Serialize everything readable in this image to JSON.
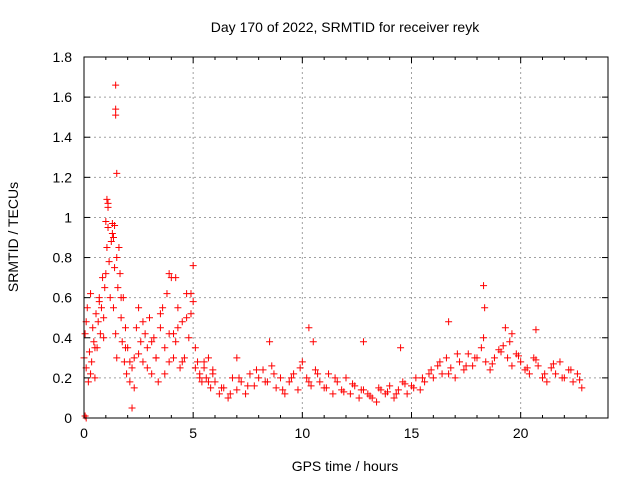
{
  "chart_data": {
    "type": "scatter",
    "title": "Day 170 of 2022, SRMTID for receiver reyk",
    "xlabel": "GPS time / hours",
    "ylabel": "SRMTID / TECUs",
    "xlim": [
      0,
      24
    ],
    "ylim": [
      0,
      1.8
    ],
    "xticks": [
      0,
      5,
      10,
      15,
      20
    ],
    "xtick_labels": [
      "0",
      "5",
      "10",
      "15",
      "20"
    ],
    "yticks": [
      0,
      0.2,
      0.4,
      0.6,
      0.8,
      1.0,
      1.2,
      1.4,
      1.6,
      1.8
    ],
    "ytick_labels": [
      "0",
      "0.2",
      "0.4",
      "0.6",
      "0.8",
      "1",
      "1.2",
      "1.4",
      "1.6",
      "1.8"
    ],
    "grid": true,
    "marker": "+",
    "color": "#ff0000",
    "series": [
      {
        "name": "SRMTID",
        "x": [
          0.0,
          0.05,
          0.1,
          0.15,
          0.2,
          0.25,
          0.3,
          0.35,
          0.4,
          0.45,
          0.5,
          0.55,
          0.6,
          0.65,
          0.7,
          0.75,
          0.8,
          0.85,
          0.9,
          0.95,
          1.0,
          1.05,
          1.1,
          1.15,
          1.2,
          1.25,
          1.3,
          1.35,
          1.4,
          1.45,
          1.5,
          1.55,
          1.6,
          1.65,
          1.7,
          1.75,
          1.8,
          1.85,
          1.9,
          1.95,
          2.0,
          2.1,
          2.2,
          2.3,
          2.4,
          2.5,
          2.6,
          2.7,
          2.8,
          2.9,
          3.0,
          3.1,
          3.2,
          3.3,
          3.4,
          3.5,
          3.6,
          3.7,
          3.8,
          3.9,
          4.0,
          4.1,
          4.2,
          4.3,
          4.4,
          4.5,
          4.6,
          4.7,
          4.8,
          4.9,
          5.0,
          5.1,
          5.2,
          5.3,
          5.4,
          5.5,
          5.6,
          5.7,
          5.8,
          5.9,
          6.0,
          6.2,
          6.4,
          6.6,
          6.8,
          7.0,
          7.2,
          7.4,
          7.6,
          7.8,
          8.0,
          8.2,
          8.4,
          8.6,
          8.8,
          9.0,
          9.2,
          9.4,
          9.6,
          9.8,
          10.0,
          10.2,
          10.4,
          10.6,
          10.8,
          11.0,
          11.2,
          11.4,
          11.6,
          11.8,
          12.0,
          12.2,
          12.4,
          12.6,
          12.8,
          13.0,
          13.2,
          13.4,
          13.6,
          13.8,
          14.0,
          14.2,
          14.4,
          14.6,
          14.8,
          15.0,
          15.2,
          15.4,
          15.6,
          15.8,
          16.0,
          16.2,
          16.4,
          16.6,
          16.8,
          17.0,
          17.2,
          17.4,
          17.6,
          17.8,
          18.0,
          18.2,
          18.4,
          18.6,
          18.8,
          19.0,
          19.2,
          19.4,
          19.6,
          19.8,
          20.0,
          20.2,
          20.4,
          20.6,
          20.8,
          21.0,
          21.2,
          21.4,
          21.6,
          21.8,
          22.0,
          22.2,
          22.4,
          22.6,
          22.8,
          0.1,
          0.3,
          0.5,
          0.7,
          0.9,
          1.1,
          1.3,
          1.5,
          1.7,
          1.9,
          2.1,
          2.3,
          2.5,
          2.7,
          2.9,
          3.1,
          3.3,
          3.5,
          3.7,
          3.9,
          4.1,
          4.3,
          4.5,
          4.7,
          4.9,
          5.1,
          5.3,
          5.5,
          5.7,
          5.9,
          6.3,
          6.7,
          7.1,
          7.5,
          7.9,
          8.3,
          8.7,
          9.1,
          9.5,
          9.9,
          10.3,
          10.7,
          11.1,
          11.5,
          11.9,
          12.3,
          12.7,
          13.1,
          13.5,
          13.9,
          14.3,
          14.7,
          15.1,
          15.5,
          15.9,
          16.3,
          16.7,
          17.1,
          17.5,
          17.9,
          18.3,
          18.7,
          19.1,
          19.5,
          19.9,
          20.3,
          20.7,
          21.1,
          21.5,
          21.9,
          22.3,
          22.7,
          1.45,
          1.45,
          1.45,
          1.5,
          1.05,
          1.1,
          1.0,
          1.4,
          1.35,
          0.05,
          0.1,
          2.2,
          3.9,
          4.2,
          5.0,
          18.3,
          18.35,
          16.7,
          19.3,
          19.6,
          20.7,
          10.3,
          10.5,
          8.5,
          12.8,
          7.0,
          14.5
        ],
        "y": [
          0.3,
          0.42,
          0.25,
          0.55,
          0.18,
          0.33,
          0.62,
          0.28,
          0.45,
          0.38,
          0.2,
          0.52,
          0.35,
          0.48,
          0.6,
          0.42,
          0.55,
          0.7,
          0.5,
          0.65,
          0.72,
          0.85,
          0.95,
          0.78,
          0.6,
          0.88,
          0.97,
          0.55,
          0.75,
          0.42,
          0.3,
          0.65,
          0.85,
          0.72,
          0.5,
          0.38,
          0.6,
          0.28,
          0.45,
          0.22,
          0.35,
          0.18,
          0.25,
          0.3,
          0.45,
          0.55,
          0.38,
          0.28,
          0.42,
          0.35,
          0.5,
          0.22,
          0.4,
          0.3,
          0.18,
          0.45,
          0.55,
          0.35,
          0.62,
          0.28,
          0.7,
          0.42,
          0.38,
          0.55,
          0.25,
          0.48,
          0.3,
          0.62,
          0.4,
          0.52,
          0.58,
          0.35,
          0.28,
          0.22,
          0.18,
          0.25,
          0.2,
          0.3,
          0.15,
          0.22,
          0.18,
          0.12,
          0.15,
          0.1,
          0.2,
          0.14,
          0.18,
          0.12,
          0.22,
          0.16,
          0.2,
          0.24,
          0.18,
          0.26,
          0.15,
          0.2,
          0.12,
          0.18,
          0.22,
          0.14,
          0.28,
          0.2,
          0.16,
          0.24,
          0.18,
          0.15,
          0.22,
          0.12,
          0.18,
          0.14,
          0.2,
          0.12,
          0.16,
          0.1,
          0.14,
          0.12,
          0.1,
          0.08,
          0.14,
          0.12,
          0.16,
          0.1,
          0.14,
          0.18,
          0.12,
          0.16,
          0.2,
          0.14,
          0.18,
          0.22,
          0.2,
          0.26,
          0.22,
          0.3,
          0.25,
          0.2,
          0.28,
          0.24,
          0.32,
          0.26,
          0.3,
          0.35,
          0.28,
          0.24,
          0.3,
          0.34,
          0.36,
          0.3,
          0.26,
          0.32,
          0.28,
          0.24,
          0.22,
          0.3,
          0.26,
          0.2,
          0.18,
          0.25,
          0.22,
          0.28,
          0.2,
          0.24,
          0.18,
          0.22,
          0.15,
          0.48,
          0.22,
          0.35,
          0.58,
          0.4,
          1.05,
          0.92,
          0.8,
          0.6,
          0.35,
          0.28,
          0.15,
          0.32,
          0.48,
          0.25,
          0.38,
          0.3,
          0.52,
          0.22,
          0.42,
          0.3,
          0.45,
          0.28,
          0.5,
          0.62,
          0.25,
          0.2,
          0.28,
          0.18,
          0.24,
          0.15,
          0.12,
          0.2,
          0.16,
          0.24,
          0.18,
          0.22,
          0.14,
          0.2,
          0.25,
          0.18,
          0.22,
          0.15,
          0.2,
          0.13,
          0.17,
          0.14,
          0.11,
          0.15,
          0.13,
          0.12,
          0.17,
          0.15,
          0.2,
          0.24,
          0.28,
          0.22,
          0.32,
          0.26,
          0.3,
          0.4,
          0.27,
          0.33,
          0.38,
          0.31,
          0.25,
          0.29,
          0.22,
          0.27,
          0.2,
          0.24,
          0.19,
          1.66,
          1.54,
          1.51,
          1.22,
          1.09,
          1.07,
          0.98,
          0.96,
          0.9,
          0.01,
          0.0,
          0.05,
          0.72,
          0.7,
          0.76,
          0.66,
          0.55,
          0.48,
          0.45,
          0.42,
          0.44,
          0.45,
          0.38,
          0.38,
          0.38,
          0.3,
          0.35
        ]
      }
    ]
  }
}
